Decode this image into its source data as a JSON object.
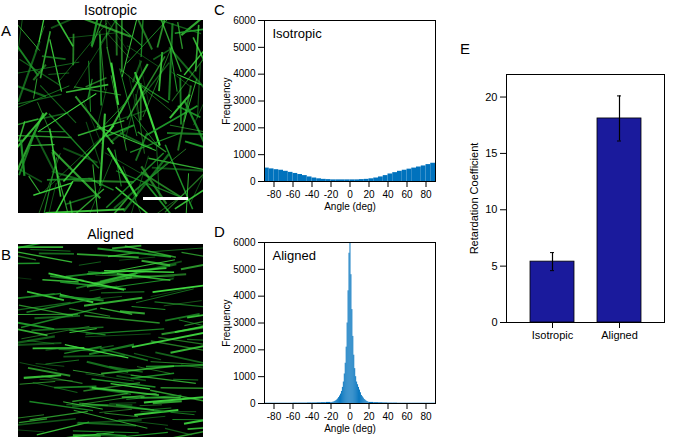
{
  "images": [
    {
      "panel": "A",
      "title": "Isotropic",
      "scale_bar": true
    },
    {
      "panel": "B",
      "title": "Aligned",
      "scale_bar": false
    }
  ],
  "chart_data": [
    {
      "panel": "C",
      "type": "histogram",
      "title": "Isotropic",
      "xlabel": "Angle (deg)",
      "ylabel": "Frequency",
      "color": "#0072BD",
      "bins": [
        -90,
        -85,
        -80,
        -75,
        -70,
        -65,
        -60,
        -55,
        -50,
        -45,
        -40,
        -35,
        -30,
        -25,
        -20,
        -15,
        -10,
        -5,
        0,
        5,
        10,
        15,
        20,
        25,
        30,
        35,
        40,
        45,
        50,
        55,
        60,
        65,
        70,
        75,
        80,
        85,
        90
      ],
      "values": [
        500,
        470,
        440,
        420,
        380,
        340,
        300,
        260,
        220,
        170,
        130,
        100,
        80,
        70,
        60,
        60,
        60,
        60,
        60,
        60,
        70,
        80,
        100,
        130,
        170,
        220,
        280,
        330,
        380,
        420,
        460,
        500,
        540,
        580,
        630,
        680
      ],
      "xlim": [
        -90,
        90
      ],
      "xticks": [
        -80,
        -60,
        -40,
        -20,
        0,
        20,
        40,
        60,
        80
      ],
      "ylim": [
        0,
        6000
      ],
      "yticks": [
        0,
        1000,
        2000,
        3000,
        4000,
        5000,
        6000
      ]
    },
    {
      "panel": "D",
      "type": "histogram",
      "title": "Aligned",
      "xlabel": "Angle (deg)",
      "ylabel": "Frequency",
      "color": "#0072BD",
      "bins": [
        -90,
        -85,
        -80,
        -75,
        -70,
        -65,
        -60,
        -55,
        -50,
        -45,
        -40,
        -35,
        -30,
        -25,
        -20,
        -19,
        -18,
        -17,
        -16,
        -15,
        -14,
        -13,
        -12,
        -11,
        -10,
        -9,
        -8,
        -7,
        -6,
        -5,
        -4,
        -3,
        -2,
        -1,
        0,
        1,
        2,
        3,
        4,
        5,
        6,
        7,
        8,
        9,
        10,
        11,
        12,
        13,
        14,
        15,
        16,
        17,
        18,
        19,
        20,
        25,
        30,
        35,
        40,
        45,
        50,
        55,
        60,
        65,
        70,
        75,
        80,
        85,
        90
      ],
      "values": [
        10,
        10,
        10,
        10,
        10,
        10,
        15,
        15,
        15,
        20,
        20,
        25,
        30,
        40,
        30,
        40,
        50,
        60,
        80,
        100,
        130,
        170,
        220,
        280,
        350,
        450,
        600,
        800,
        1100,
        1500,
        2100,
        3000,
        4200,
        5600,
        6000,
        4800,
        3500,
        2500,
        1800,
        1300,
        1000,
        800,
        700,
        600,
        500,
        400,
        300,
        250,
        200,
        150,
        120,
        90,
        70,
        50,
        40,
        30,
        25,
        20,
        15,
        15,
        10,
        10,
        10,
        10,
        10,
        10,
        10,
        10
      ],
      "xlim": [
        -90,
        90
      ],
      "xticks": [
        -80,
        -60,
        -40,
        -20,
        0,
        20,
        40,
        60,
        80
      ],
      "ylim": [
        0,
        6000
      ],
      "yticks": [
        0,
        1000,
        2000,
        3000,
        4000,
        5000,
        6000
      ]
    },
    {
      "panel": "E",
      "type": "bar",
      "categories": [
        "Isotropic",
        "Aligned"
      ],
      "values": [
        5.4,
        18.1
      ],
      "errors": [
        0.8,
        2.0
      ],
      "ylabel": "Retardation Coefficient",
      "color": "#1a1a9c",
      "ylim": [
        0,
        22
      ],
      "yticks": [
        0,
        5,
        10,
        15,
        20
      ]
    }
  ]
}
